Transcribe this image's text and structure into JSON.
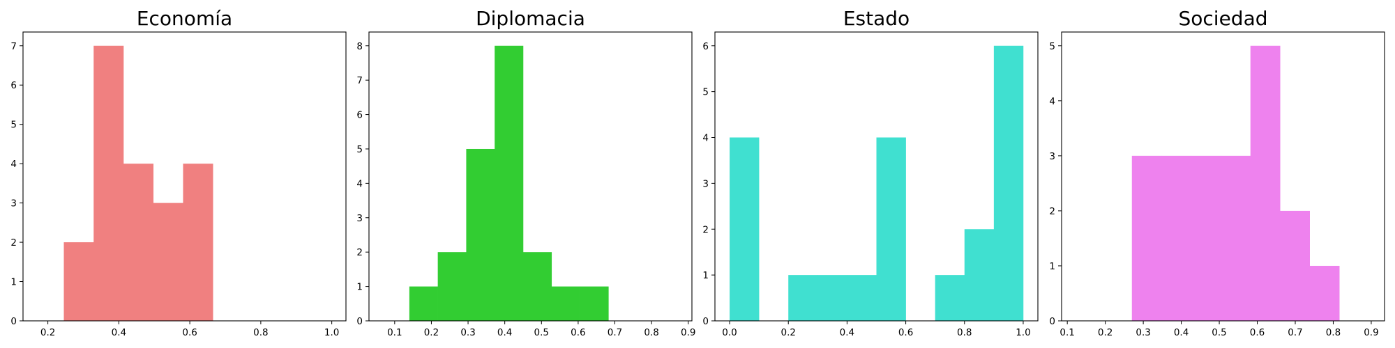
{
  "chart_data": [
    {
      "type": "bar",
      "title": "Economía",
      "color": "#f08080",
      "bin_edges": [
        0.245,
        0.329,
        0.413,
        0.497,
        0.581,
        0.665
      ],
      "values": [
        2,
        7,
        4,
        3,
        4
      ],
      "xlim": [
        0.13,
        1.04
      ],
      "ylim": [
        0,
        7.35
      ],
      "xticks": [
        0.2,
        0.4,
        0.6,
        0.8,
        1.0
      ],
      "xtick_labels": [
        "0.2",
        "0.4",
        "0.6",
        "0.8",
        "1.0"
      ],
      "yticks": [
        0,
        1,
        2,
        3,
        4,
        5,
        6,
        7
      ],
      "ytick_labels": [
        "0",
        "1",
        "2",
        "3",
        "4",
        "5",
        "6",
        "7"
      ]
    },
    {
      "type": "bar",
      "title": "Diplomacia",
      "color": "#32cd32",
      "bin_edges": [
        0.14,
        0.2175,
        0.295,
        0.3725,
        0.45,
        0.5275,
        0.605,
        0.6825
      ],
      "values": [
        1,
        2,
        5,
        8,
        2,
        1,
        1
      ],
      "xlim": [
        0.03,
        0.91
      ],
      "ylim": [
        0,
        8.4
      ],
      "xticks": [
        0.1,
        0.2,
        0.3,
        0.4,
        0.5,
        0.6,
        0.7,
        0.8,
        0.9
      ],
      "xtick_labels": [
        "0.1",
        "0.2",
        "0.3",
        "0.4",
        "0.5",
        "0.6",
        "0.7",
        "0.8",
        "0.9"
      ],
      "yticks": [
        0,
        1,
        2,
        3,
        4,
        5,
        6,
        7,
        8
      ],
      "ytick_labels": [
        "0",
        "1",
        "2",
        "3",
        "4",
        "5",
        "6",
        "7",
        "8"
      ]
    },
    {
      "type": "bar",
      "title": "Estado",
      "color": "#40e0d0",
      "bin_edges": [
        0.0,
        0.1,
        0.2,
        0.3,
        0.4,
        0.5,
        0.6,
        0.7,
        0.8,
        0.9,
        1.0
      ],
      "values": [
        4,
        0,
        1,
        1,
        1,
        4,
        0,
        1,
        2,
        6
      ],
      "xlim": [
        -0.05,
        1.05
      ],
      "ylim": [
        0,
        6.3
      ],
      "xticks": [
        0.0,
        0.2,
        0.4,
        0.6,
        0.8,
        1.0
      ],
      "xtick_labels": [
        "0.0",
        "0.2",
        "0.4",
        "0.6",
        "0.8",
        "1.0"
      ],
      "yticks": [
        0,
        1,
        2,
        3,
        4,
        5,
        6
      ],
      "ytick_labels": [
        "0",
        "1",
        "2",
        "3",
        "4",
        "5",
        "6"
      ]
    },
    {
      "type": "bar",
      "title": "Sociedad",
      "color": "#ee82ee",
      "bin_edges": [
        0.27,
        0.348,
        0.426,
        0.504,
        0.582,
        0.66,
        0.738,
        0.816
      ],
      "values": [
        3,
        3,
        3,
        3,
        5,
        2,
        1
      ],
      "xlim": [
        0.085,
        0.935
      ],
      "ylim": [
        0,
        5.25
      ],
      "xticks": [
        0.1,
        0.2,
        0.3,
        0.4,
        0.5,
        0.6,
        0.7,
        0.8,
        0.9
      ],
      "xtick_labels": [
        "0.1",
        "0.2",
        "0.3",
        "0.4",
        "0.5",
        "0.6",
        "0.7",
        "0.8",
        "0.9"
      ],
      "yticks": [
        0,
        1,
        2,
        3,
        4,
        5
      ],
      "ytick_labels": [
        "0",
        "1",
        "2",
        "3",
        "4",
        "5"
      ]
    }
  ]
}
